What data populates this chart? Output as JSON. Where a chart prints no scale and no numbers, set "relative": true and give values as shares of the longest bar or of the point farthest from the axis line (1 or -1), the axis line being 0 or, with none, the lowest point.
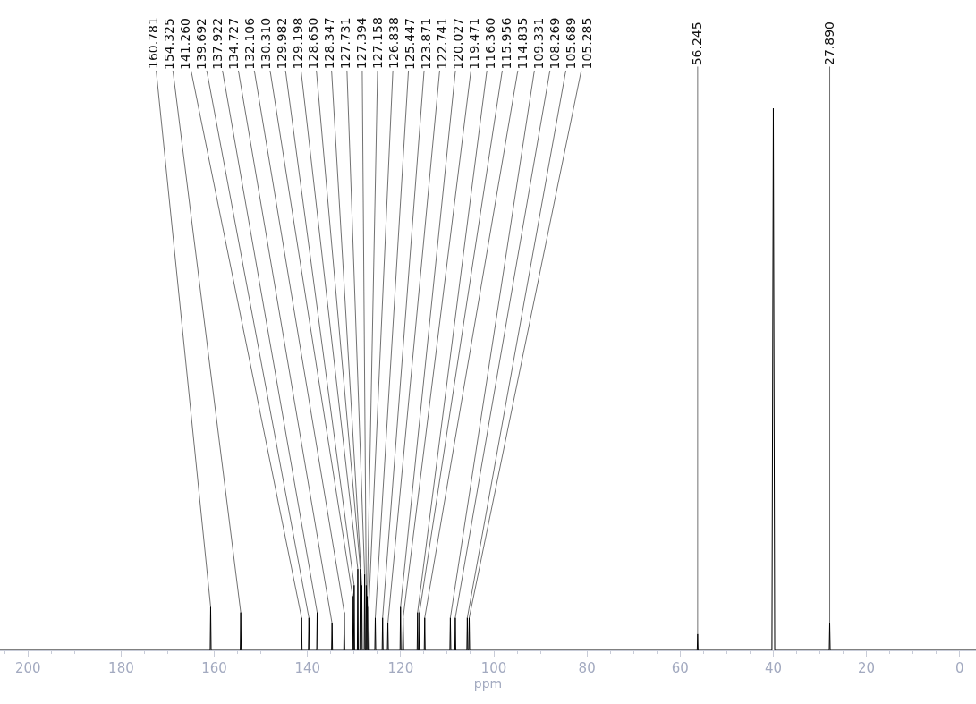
{
  "chart_data": {
    "type": "line",
    "xlabel": "ppm",
    "relative": true,
    "xlim": [
      206,
      -3.5
    ],
    "xticks": [
      200,
      180,
      160,
      140,
      120,
      100,
      80,
      60,
      40,
      20,
      0
    ],
    "marker": "none",
    "line_style": "solid",
    "series": [
      {
        "color": "#000000",
        "x": [
          206,
          160.881,
          160.781,
          160.681,
          154.425,
          154.325,
          154.225,
          141.36,
          141.26,
          141.16,
          139.792,
          139.692,
          139.592,
          138.022,
          137.922,
          137.822,
          134.827,
          134.727,
          134.627,
          132.206,
          132.106,
          132.006,
          130.41,
          130.31,
          130.21,
          130.082,
          129.982,
          129.882,
          129.298,
          129.198,
          129.098,
          128.75,
          128.65,
          128.55,
          128.447,
          128.347,
          128.247,
          127.831,
          127.731,
          127.631,
          127.494,
          127.394,
          127.294,
          127.258,
          127.158,
          127.058,
          126.938,
          126.838,
          126.738,
          125.547,
          125.447,
          125.347,
          123.971,
          123.871,
          123.771,
          122.841,
          122.741,
          122.641,
          120.127,
          120.027,
          119.927,
          119.571,
          119.471,
          119.371,
          116.46,
          116.36,
          116.26,
          116.056,
          115.956,
          115.856,
          114.935,
          114.835,
          114.735,
          109.431,
          109.331,
          109.231,
          108.369,
          108.269,
          108.169,
          105.789,
          105.689,
          105.589,
          105.385,
          105.285,
          105.185,
          56.345,
          56.245,
          56.145,
          40.3,
          40.0,
          39.7,
          27.99,
          27.89,
          27.79,
          -3.5
        ],
        "values": [
          0,
          0,
          0.08,
          0,
          0,
          0.07,
          0,
          0,
          0.06,
          0,
          0,
          0.06,
          0,
          0,
          0.07,
          0,
          0,
          0.05,
          0,
          0,
          0.07,
          0,
          0,
          0.1,
          0,
          0,
          0.12,
          0,
          0,
          0.15,
          0,
          0,
          0.15,
          0,
          0,
          0.12,
          0,
          0,
          0.14,
          0,
          0,
          0.12,
          0,
          0,
          0.1,
          0,
          0,
          0.08,
          0,
          0,
          0.06,
          0,
          0,
          0.06,
          0,
          0,
          0.05,
          0,
          0,
          0.08,
          0,
          0,
          0.06,
          0,
          0,
          0.07,
          0,
          0,
          0.07,
          0,
          0,
          0.06,
          0,
          0,
          0.06,
          0,
          0,
          0.06,
          0,
          0,
          0.06,
          0,
          0,
          0.06,
          0,
          0,
          0.03,
          0,
          0,
          1,
          0,
          0,
          0.05,
          0,
          0
        ]
      }
    ],
    "annotations": [
      {
        "text": "160.781",
        "x": 160.781,
        "y": 0.08
      },
      {
        "text": "154.325",
        "x": 154.325,
        "y": 0.07
      },
      {
        "text": "141.260",
        "x": 141.26,
        "y": 0.06
      },
      {
        "text": "139.692",
        "x": 139.692,
        "y": 0.06
      },
      {
        "text": "137.922",
        "x": 137.922,
        "y": 0.07
      },
      {
        "text": "134.727",
        "x": 134.727,
        "y": 0.05
      },
      {
        "text": "132.106",
        "x": 132.106,
        "y": 0.07
      },
      {
        "text": "130.310",
        "x": 130.31,
        "y": 0.1
      },
      {
        "text": "129.982",
        "x": 129.982,
        "y": 0.12
      },
      {
        "text": "129.198",
        "x": 129.198,
        "y": 0.15
      },
      {
        "text": "128.650",
        "x": 128.65,
        "y": 0.15
      },
      {
        "text": "128.347",
        "x": 128.347,
        "y": 0.12
      },
      {
        "text": "127.731",
        "x": 127.731,
        "y": 0.14
      },
      {
        "text": "127.394",
        "x": 127.394,
        "y": 0.12
      },
      {
        "text": "127.158",
        "x": 127.158,
        "y": 0.1
      },
      {
        "text": "126.838",
        "x": 126.838,
        "y": 0.08
      },
      {
        "text": "125.447",
        "x": 125.447,
        "y": 0.06
      },
      {
        "text": "123.871",
        "x": 123.871,
        "y": 0.06
      },
      {
        "text": "122.741",
        "x": 122.741,
        "y": 0.05
      },
      {
        "text": "120.027",
        "x": 120.027,
        "y": 0.08
      },
      {
        "text": "119.471",
        "x": 119.471,
        "y": 0.06
      },
      {
        "text": "116.360",
        "x": 116.36,
        "y": 0.07
      },
      {
        "text": "115.956",
        "x": 115.956,
        "y": 0.07
      },
      {
        "text": "114.835",
        "x": 114.835,
        "y": 0.06
      },
      {
        "text": "109.331",
        "x": 109.331,
        "y": 0.06
      },
      {
        "text": "108.269",
        "x": 108.269,
        "y": 0.06
      },
      {
        "text": "105.689",
        "x": 105.689,
        "y": 0.06
      },
      {
        "text": "105.285",
        "x": 105.285,
        "y": 0.06
      },
      {
        "text": "56.245",
        "x": 56.245,
        "y": 0.03
      },
      {
        "text": "27.890",
        "x": 27.89,
        "y": 0.05
      }
    ]
  }
}
